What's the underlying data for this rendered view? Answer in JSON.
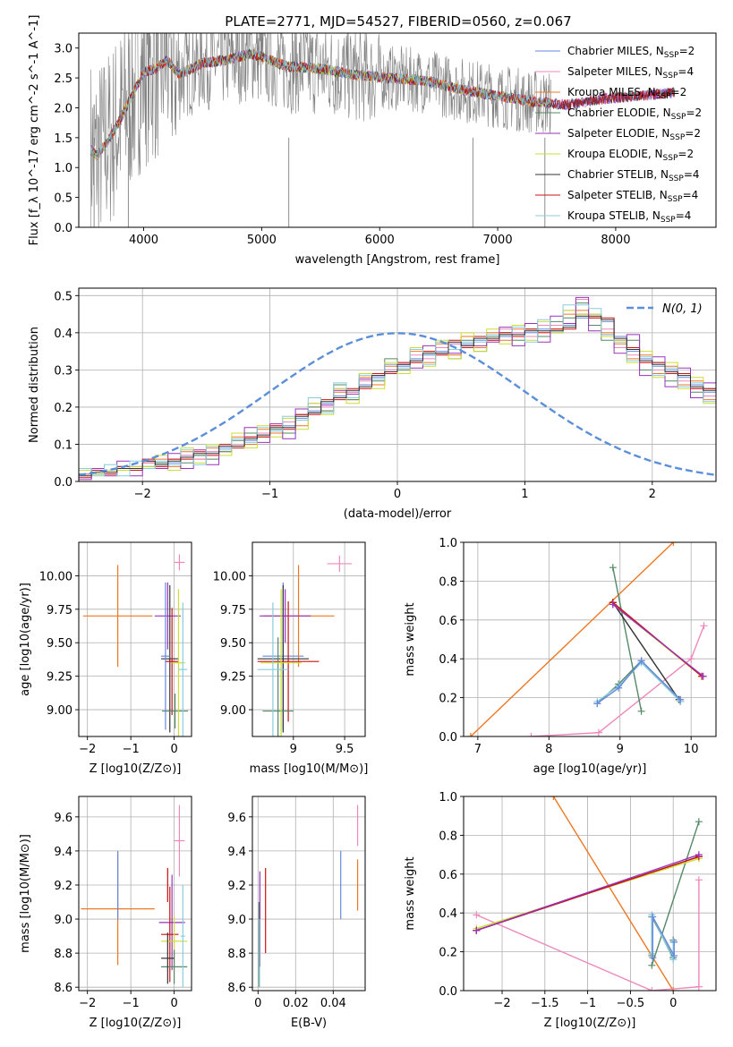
{
  "figure": {
    "title": "PLATE=2771, MJD=54527, FIBERID=0560, z=0.067"
  },
  "colors": {
    "c0": "#6688dd",
    "c1": "#ee88bb",
    "c2": "#ee7722",
    "c3": "#558866",
    "c4": "#9933bb",
    "c5": "#ccdd33",
    "c6": "#333333",
    "c7": "#cc1111",
    "c8": "#88ccdd",
    "observed": "#808080",
    "normal": "#5b8fd9",
    "grid": "#b0b0b0"
  },
  "legend_series": [
    {
      "base": "Chabrier MILES, N",
      "sub": "SSP",
      "tail": "=2",
      "color": "#6688dd"
    },
    {
      "base": "Salpeter MILES, N",
      "sub": "SSP",
      "tail": "=4",
      "color": "#ee88bb"
    },
    {
      "base": "Kroupa MILES, N",
      "sub": "SSP",
      "tail": "=2",
      "color": "#ee7722"
    },
    {
      "base": "Chabrier ELODIE, N",
      "sub": "SSP",
      "tail": "=2",
      "color": "#558866"
    },
    {
      "base": "Salpeter ELODIE, N",
      "sub": "SSP",
      "tail": "=2",
      "color": "#9933bb"
    },
    {
      "base": "Kroupa ELODIE, N",
      "sub": "SSP",
      "tail": "=2",
      "color": "#ccdd33"
    },
    {
      "base": "Chabrier STELIB, N",
      "sub": "SSP",
      "tail": "=4",
      "color": "#333333"
    },
    {
      "base": "Salpeter STELIB, N",
      "sub": "SSP",
      "tail": "=4",
      "color": "#cc1111"
    },
    {
      "base": "Kroupa STELIB, N",
      "sub": "SSP",
      "tail": "=4",
      "color": "#88ccdd"
    }
  ],
  "chart_data": [
    {
      "id": "spectrum",
      "type": "line",
      "xlabel": "wavelength [Angstrom, rest frame]",
      "ylabel": "Flux [f_λ 10^-17 erg cm^-2 s^-1 A^-1]",
      "xlim": [
        3450,
        8850
      ],
      "ylim": [
        0,
        3.25
      ],
      "xticks": [
        4000,
        5000,
        6000,
        7000,
        8000
      ],
      "yticks": [
        0.0,
        0.5,
        1.0,
        1.5,
        2.0,
        2.5,
        3.0
      ],
      "grid": false,
      "legend": "upper right",
      "model_continuum": {
        "x": [
          3550,
          3600,
          3700,
          3800,
          3900,
          4000,
          4100,
          4200,
          4300,
          4500,
          4700,
          4900,
          5000,
          5200,
          5500,
          5800,
          6100,
          6400,
          6700,
          7000,
          7300,
          7600,
          7900,
          8200,
          8500
        ],
        "y": [
          1.3,
          1.2,
          1.45,
          1.8,
          2.2,
          2.6,
          2.65,
          2.8,
          2.55,
          2.75,
          2.8,
          2.9,
          2.85,
          2.7,
          2.65,
          2.55,
          2.5,
          2.45,
          2.3,
          2.2,
          2.1,
          2.05,
          2.15,
          2.2,
          2.25
        ]
      },
      "observed_range": [
        3550,
        7450
      ]
    },
    {
      "id": "residuals",
      "type": "histogram",
      "xlabel": "(data-model)/error",
      "ylabel": "Normed distribution",
      "xlim": [
        -2.5,
        2.5
      ],
      "ylim": [
        0,
        0.52
      ],
      "xticks": [
        -2,
        -1,
        0,
        1,
        2
      ],
      "yticks": [
        0.0,
        0.1,
        0.2,
        0.3,
        0.4,
        0.5
      ],
      "grid": true,
      "legend": "upper right",
      "normal_label": "N(0, 1)",
      "bin_width": 0.1,
      "bin_start": -2.5,
      "histograms": [
        [
          0.02,
          0.02,
          0.03,
          0.03,
          0.04,
          0.05,
          0.05,
          0.05,
          0.07,
          0.07,
          0.08,
          0.09,
          0.1,
          0.11,
          0.13,
          0.14,
          0.15,
          0.17,
          0.19,
          0.21,
          0.23,
          0.24,
          0.26,
          0.28,
          0.3,
          0.31,
          0.33,
          0.34,
          0.35,
          0.37,
          0.37,
          0.38,
          0.39,
          0.39,
          0.4,
          0.4,
          0.41,
          0.4,
          0.42,
          0.44,
          0.45,
          0.43,
          0.39,
          0.35,
          0.33,
          0.31,
          0.3,
          0.28,
          0.26,
          0.24,
          0.22,
          0.2,
          0.18,
          0.16,
          0.14,
          0.12,
          0.11,
          0.09,
          0.08,
          0.07,
          0.06,
          0.05,
          0.04,
          0.04,
          0.03,
          0.03,
          0.02,
          0.02,
          0.02,
          0.02
        ],
        [
          0.02,
          0.03,
          0.02,
          0.04,
          0.03,
          0.05,
          0.06,
          0.04,
          0.08,
          0.06,
          0.09,
          0.08,
          0.12,
          0.1,
          0.14,
          0.13,
          0.16,
          0.15,
          0.2,
          0.19,
          0.24,
          0.22,
          0.28,
          0.26,
          0.31,
          0.3,
          0.35,
          0.32,
          0.37,
          0.34,
          0.39,
          0.36,
          0.4,
          0.38,
          0.41,
          0.39,
          0.42,
          0.41,
          0.45,
          0.46,
          0.44,
          0.4,
          0.37,
          0.33,
          0.34,
          0.29,
          0.31,
          0.26,
          0.27,
          0.22,
          0.23,
          0.18,
          0.19,
          0.14,
          0.15,
          0.11,
          0.12,
          0.08,
          0.09,
          0.06,
          0.07,
          0.04,
          0.05,
          0.03,
          0.04,
          0.02,
          0.03,
          0.02,
          0.02,
          0.02
        ],
        [
          0.02,
          0.02,
          0.03,
          0.04,
          0.03,
          0.04,
          0.05,
          0.06,
          0.05,
          0.07,
          0.06,
          0.08,
          0.11,
          0.13,
          0.12,
          0.14,
          0.13,
          0.18,
          0.2,
          0.19,
          0.26,
          0.22,
          0.29,
          0.27,
          0.33,
          0.3,
          0.32,
          0.35,
          0.36,
          0.33,
          0.38,
          0.35,
          0.39,
          0.4,
          0.38,
          0.41,
          0.39,
          0.43,
          0.44,
          0.48,
          0.42,
          0.38,
          0.36,
          0.38,
          0.3,
          0.32,
          0.27,
          0.29,
          0.24,
          0.25,
          0.19,
          0.21,
          0.16,
          0.17,
          0.13,
          0.14,
          0.1,
          0.11,
          0.07,
          0.08,
          0.05,
          0.06,
          0.04,
          0.05,
          0.03,
          0.03,
          0.02,
          0.02,
          0.02,
          0.02
        ],
        [
          0.02,
          0.03,
          0.03,
          0.03,
          0.04,
          0.05,
          0.04,
          0.06,
          0.07,
          0.06,
          0.08,
          0.1,
          0.1,
          0.12,
          0.13,
          0.15,
          0.16,
          0.18,
          0.21,
          0.2,
          0.25,
          0.24,
          0.27,
          0.29,
          0.3,
          0.32,
          0.34,
          0.33,
          0.36,
          0.37,
          0.36,
          0.39,
          0.38,
          0.41,
          0.4,
          0.39,
          0.42,
          0.42,
          0.46,
          0.49,
          0.45,
          0.41,
          0.36,
          0.34,
          0.32,
          0.3,
          0.29,
          0.27,
          0.25,
          0.23,
          0.21,
          0.19,
          0.17,
          0.15,
          0.13,
          0.12,
          0.1,
          0.09,
          0.08,
          0.07,
          0.06,
          0.05,
          0.04,
          0.04,
          0.03,
          0.03,
          0.02,
          0.02,
          0.02,
          0.02
        ]
      ],
      "normal_curve": true
    },
    {
      "id": "z-vs-age",
      "type": "errorbar",
      "xlabel": "Z [log10(Z/Z⊙)]",
      "ylabel": "age  [log10(age/yr)]",
      "xlim": [
        -2.2,
        0.4
      ],
      "ylim": [
        8.8,
        10.25
      ],
      "xticks": [
        -2,
        -1,
        0
      ],
      "yticks": [
        9.0,
        9.25,
        9.5,
        9.75,
        10.0
      ],
      "grid": true,
      "points": [
        {
          "x": 0.12,
          "y": 10.1,
          "xe": 0.12,
          "ye": 0.06,
          "c": "c1"
        },
        {
          "x": -1.3,
          "y": 9.7,
          "xe": 0.8,
          "ye": 0.38,
          "c": "c2"
        },
        {
          "x": -0.15,
          "y": 9.7,
          "xe": 0.3,
          "ye": 0.25,
          "c": "c4"
        },
        {
          "x": -0.1,
          "y": 9.38,
          "xe": 0.2,
          "ye": 0.55,
          "c": "c6"
        },
        {
          "x": -0.05,
          "y": 9.36,
          "xe": 0.15,
          "ye": 0.4,
          "c": "c7"
        },
        {
          "x": 0.02,
          "y": 8.99,
          "xe": 0.3,
          "ye": 0.13,
          "c": "c3"
        },
        {
          "x": 0.1,
          "y": 9.35,
          "xe": 0.15,
          "ye": 0.55,
          "c": "c5"
        },
        {
          "x": 0.2,
          "y": 9.3,
          "xe": 0.1,
          "ye": 0.5,
          "c": "c8"
        },
        {
          "x": -0.2,
          "y": 9.4,
          "xe": 0.1,
          "ye": 0.55,
          "c": "c0"
        }
      ]
    },
    {
      "id": "mass-vs-age",
      "type": "errorbar",
      "xlabel": "mass [log10(M/M⊙)]",
      "ylabel": "",
      "xlim": [
        8.6,
        9.7
      ],
      "ylim": [
        8.8,
        10.25
      ],
      "xticks": [
        9.0,
        9.5
      ],
      "yticks": [
        9.0,
        9.25,
        9.5,
        9.75,
        10.0
      ],
      "grid": true,
      "points": [
        {
          "x": 9.45,
          "y": 10.09,
          "xe": 0.12,
          "ye": 0.06,
          "c": "c1"
        },
        {
          "x": 8.9,
          "y": 9.4,
          "xe": 0.2,
          "ye": 0.55,
          "c": "c0"
        },
        {
          "x": 9.05,
          "y": 9.7,
          "xe": 0.35,
          "ye": 0.38,
          "c": "c2"
        },
        {
          "x": 8.9,
          "y": 9.38,
          "xe": 0.25,
          "ye": 0.55,
          "c": "c6"
        },
        {
          "x": 8.95,
          "y": 9.36,
          "xe": 0.3,
          "ye": 0.45,
          "c": "c7"
        },
        {
          "x": 8.92,
          "y": 9.7,
          "xe": 0.25,
          "ye": 0.2,
          "c": "c4"
        },
        {
          "x": 8.85,
          "y": 8.99,
          "xe": 0.15,
          "ye": 0.55,
          "c": "c3"
        },
        {
          "x": 8.88,
          "y": 9.35,
          "xe": 0.2,
          "ye": 0.55,
          "c": "c5"
        },
        {
          "x": 8.8,
          "y": 9.3,
          "xe": 0.15,
          "ye": 0.5,
          "c": "c8"
        }
      ]
    },
    {
      "id": "age-vs-weight",
      "type": "line",
      "xlabel": "age  [log10(age/yr)]",
      "ylabel": "mass weight",
      "xlim": [
        6.8,
        10.35
      ],
      "ylim": [
        0,
        1
      ],
      "xticks": [
        7,
        8,
        9,
        10
      ],
      "yticks": [
        0.0,
        0.2,
        0.4,
        0.6,
        0.8,
        1.0
      ],
      "grid": true,
      "series": [
        {
          "c": "c2",
          "x": [
            6.9,
            9.75
          ],
          "y": [
            0.0,
            1.0
          ]
        },
        {
          "c": "c1",
          "x": [
            7.75,
            8.7,
            10.0,
            10.18
          ],
          "y": [
            0.0,
            0.02,
            0.4,
            0.57
          ]
        },
        {
          "c": "c3",
          "x": [
            8.9,
            9.3
          ],
          "y": [
            0.87,
            0.13
          ]
        },
        {
          "c": "c6",
          "x": [
            8.9,
            9.83
          ],
          "y": [
            0.69,
            0.19
          ]
        },
        {
          "c": "c5",
          "x": [
            8.9,
            10.15
          ],
          "y": [
            0.68,
            0.31
          ]
        },
        {
          "c": "c7",
          "x": [
            8.9,
            10.15
          ],
          "y": [
            0.69,
            0.31
          ]
        },
        {
          "c": "c4",
          "x": [
            8.9,
            10.17
          ],
          "y": [
            0.68,
            0.31
          ]
        },
        {
          "c": "c3",
          "x": [
            8.68,
            8.98,
            9.3,
            9.85
          ],
          "y": [
            0.17,
            0.27,
            0.39,
            0.18
          ]
        },
        {
          "c": "c8",
          "x": [
            8.68,
            8.98,
            9.3,
            9.85
          ],
          "y": [
            0.18,
            0.26,
            0.38,
            0.18
          ]
        },
        {
          "c": "c0",
          "x": [
            8.68,
            8.98,
            9.3,
            9.85
          ],
          "y": [
            0.17,
            0.25,
            0.39,
            0.19
          ]
        }
      ]
    },
    {
      "id": "z-vs-mass",
      "type": "errorbar",
      "xlabel": "Z [log10(Z/Z⊙)]",
      "ylabel": "mass [log10(M/M⊙)]",
      "xlim": [
        -2.2,
        0.4
      ],
      "ylim": [
        8.58,
        9.72
      ],
      "xticks": [
        -2,
        -1,
        0
      ],
      "yticks": [
        8.6,
        8.8,
        9.0,
        9.2,
        9.4,
        9.6
      ],
      "grid": true,
      "points": [
        {
          "x": 0.12,
          "y": 9.46,
          "xe": 0.12,
          "ye": 0.21,
          "c": "c1"
        },
        {
          "x": -1.3,
          "y": 9.06,
          "xe": 0.85,
          "ye": 0.33,
          "c": "c2"
        },
        {
          "x": -1.3,
          "y": 9.2,
          "xe": 0.0,
          "ye": 0.2,
          "c": "c0"
        },
        {
          "x": -0.15,
          "y": 9.2,
          "xe": 0.0,
          "ye": 0.1,
          "c": "c7"
        },
        {
          "x": -0.05,
          "y": 8.98,
          "xe": 0.3,
          "ye": 0.28,
          "c": "c4"
        },
        {
          "x": -0.1,
          "y": 8.91,
          "xe": 0.2,
          "ye": 0.28,
          "c": "c7"
        },
        {
          "x": 0.0,
          "y": 8.87,
          "xe": 0.3,
          "ye": 0.15,
          "c": "c5"
        },
        {
          "x": 0.0,
          "y": 8.72,
          "xe": 0.3,
          "ye": 0.1,
          "c": "c3"
        },
        {
          "x": -0.15,
          "y": 8.77,
          "xe": 0.15,
          "ye": 0.15,
          "c": "c6"
        },
        {
          "x": 0.2,
          "y": 8.9,
          "xe": 0.05,
          "ye": 0.3,
          "c": "c8"
        }
      ]
    },
    {
      "id": "ebv-vs-mass",
      "type": "errorbar",
      "xlabel": "E(B-V)",
      "ylabel": "",
      "xlim": [
        -0.003,
        0.057
      ],
      "ylim": [
        8.58,
        9.72
      ],
      "xticks": [
        0.0,
        0.02,
        0.04
      ],
      "yticks": [
        8.6,
        8.8,
        9.0,
        9.2,
        9.4,
        9.6
      ],
      "grid": true,
      "points": [
        {
          "x": 0.053,
          "y": 9.55,
          "xe": 0,
          "ye": 0.12,
          "c": "c1"
        },
        {
          "x": 0.053,
          "y": 9.2,
          "xe": 0,
          "ye": 0.15,
          "c": "c2"
        },
        {
          "x": 0.044,
          "y": 9.2,
          "xe": 0,
          "ye": 0.2,
          "c": "c0"
        },
        {
          "x": 0.004,
          "y": 9.05,
          "xe": 0,
          "ye": 0.25,
          "c": "c7"
        },
        {
          "x": 0.001,
          "y": 9.0,
          "xe": 0,
          "ye": 0.28,
          "c": "c4"
        },
        {
          "x": 0.0005,
          "y": 8.85,
          "xe": 0,
          "ye": 0.25,
          "c": "c3"
        },
        {
          "x": 0.0008,
          "y": 8.8,
          "xe": 0,
          "ye": 0.2,
          "c": "c8"
        }
      ]
    },
    {
      "id": "z-vs-weight",
      "type": "line",
      "xlabel": "Z [log10(Z/Z⊙)]",
      "ylabel": "mass weight",
      "xlim": [
        -2.45,
        0.5
      ],
      "ylim": [
        0,
        1
      ],
      "xticks": [
        -2.0,
        -1.5,
        -1.0,
        -0.5,
        0.0
      ],
      "yticks": [
        0.0,
        0.2,
        0.4,
        0.6,
        0.8,
        1.0
      ],
      "grid": true,
      "series": [
        {
          "c": "c2",
          "x": [
            -1.4,
            0.0
          ],
          "y": [
            1.0,
            0.0
          ]
        },
        {
          "c": "c1",
          "x": [
            -2.3,
            -0.25,
            0.3,
            0.3
          ],
          "y": [
            0.39,
            0.0,
            0.02,
            0.57
          ]
        },
        {
          "c": "c3",
          "x": [
            -0.25,
            0.3
          ],
          "y": [
            0.13,
            0.87
          ]
        },
        {
          "c": "c6",
          "x": [
            -2.3,
            0.3
          ],
          "y": [
            0.31,
            0.69
          ]
        },
        {
          "c": "c5",
          "x": [
            -2.3,
            0.3
          ],
          "y": [
            0.32,
            0.68
          ]
        },
        {
          "c": "c7",
          "x": [
            -2.3,
            0.3
          ],
          "y": [
            0.31,
            0.69
          ]
        },
        {
          "c": "c4",
          "x": [
            -2.3,
            0.3
          ],
          "y": [
            0.31,
            0.7
          ]
        },
        {
          "c": "c3",
          "x": [
            -0.25,
            -0.25,
            0.0,
            0.0
          ],
          "y": [
            0.18,
            0.38,
            0.17,
            0.26
          ]
        },
        {
          "c": "c8",
          "x": [
            -0.25,
            -0.25,
            0.0,
            0.0
          ],
          "y": [
            0.19,
            0.39,
            0.16,
            0.25
          ]
        },
        {
          "c": "c0",
          "x": [
            -0.24,
            -0.24,
            0.01,
            0.01
          ],
          "y": [
            0.17,
            0.38,
            0.18,
            0.25
          ]
        }
      ]
    }
  ]
}
